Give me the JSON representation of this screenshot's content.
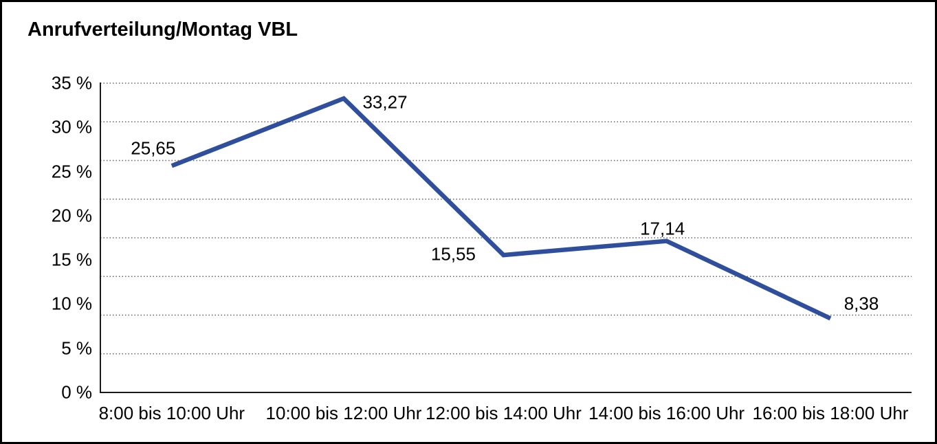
{
  "chart_data": {
    "type": "line",
    "title": "Anrufverteilung/Montag VBL",
    "categories": [
      "8:00 bis 10:00 Uhr",
      "10:00 bis 12:00 Uhr",
      "12:00 bis 14:00 Uhr",
      "14:00 bis 16:00 Uhr",
      "16:00 bis 18:00 Uhr"
    ],
    "series": [
      {
        "name": "Anrufverteilung Montag VBL",
        "values": [
          25.65,
          33.27,
          15.55,
          17.14,
          8.38
        ],
        "value_labels": [
          "25,65",
          "33,27",
          "15,55",
          "17,14",
          "8,38"
        ]
      }
    ],
    "xlabel": "",
    "ylabel": "",
    "ylim": [
      0,
      35
    ],
    "y_ticks": [
      {
        "value": 35,
        "label": "35 %"
      },
      {
        "value": 30,
        "label": "30 %"
      },
      {
        "value": 25,
        "label": "25 %"
      },
      {
        "value": 20,
        "label": "20 %"
      },
      {
        "value": 15,
        "label": "15 %"
      },
      {
        "value": 10,
        "label": "10 %"
      },
      {
        "value": 5,
        "label": "5 %"
      },
      {
        "value": 0,
        "label": "0 %"
      }
    ],
    "grid": "horizontal-dotted",
    "legend": "none",
    "colors": {
      "line": "#2F4F9D",
      "text": "#000000",
      "grid": "#666666",
      "axis": "#1a1a1a",
      "background": "#ffffff",
      "frame_border": "#000000"
    }
  }
}
